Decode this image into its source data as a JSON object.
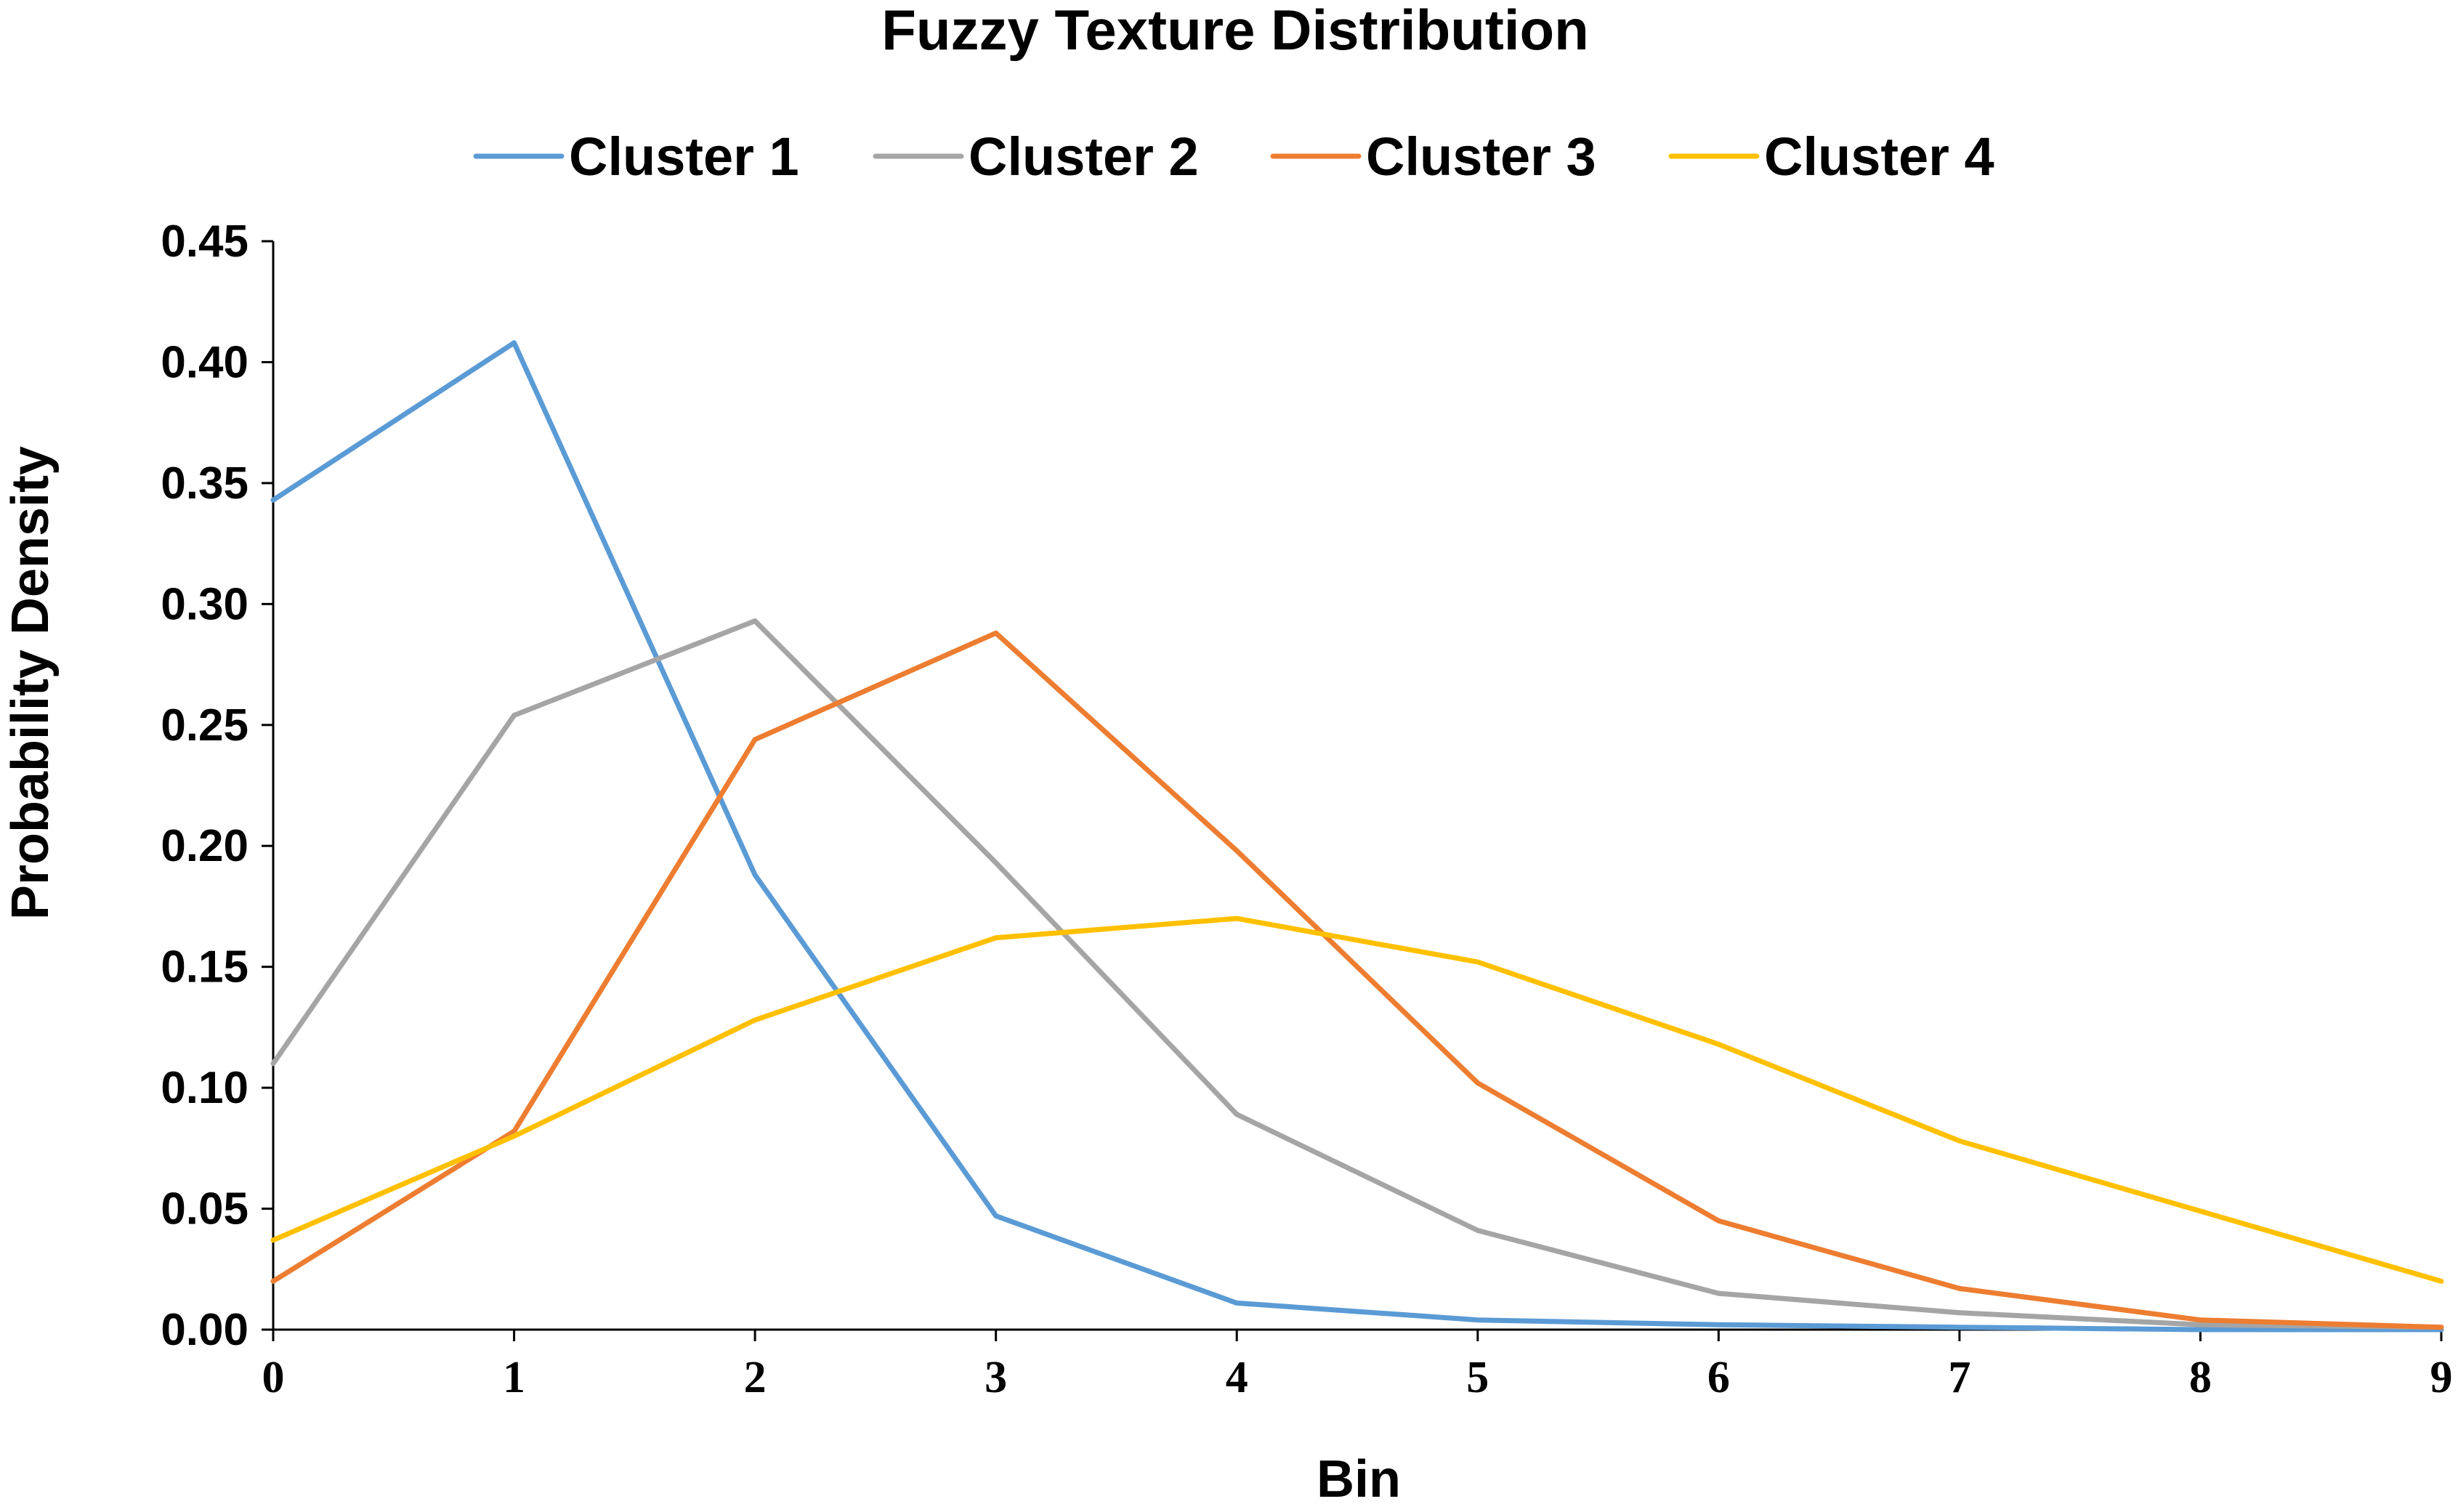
{
  "chart_data": {
    "type": "line",
    "title": "Fuzzy Texture Distribution",
    "xlabel": "Bin",
    "ylabel": "Probability Density",
    "x": [
      0,
      1,
      2,
      3,
      4,
      5,
      6,
      7,
      8,
      9
    ],
    "x_tick_labels": [
      "0",
      "1",
      "2",
      "3",
      "4",
      "5",
      "6",
      "7",
      "8",
      "9"
    ],
    "xlim": [
      0,
      9
    ],
    "ylim": [
      0,
      0.45
    ],
    "y_ticks": [
      0,
      0.05,
      0.1,
      0.15,
      0.2,
      0.25,
      0.3,
      0.35,
      0.4,
      0.45
    ],
    "y_tick_labels": [
      "0.00",
      "0.05",
      "0.10",
      "0.15",
      "0.20",
      "0.25",
      "0.30",
      "0.35",
      "0.40",
      "0.45"
    ],
    "grid": false,
    "legend_position": "top",
    "series": [
      {
        "name": "Cluster 1",
        "color": "#5b9bd5",
        "values": [
          0.343,
          0.408,
          0.188,
          0.047,
          0.011,
          0.004,
          0.002,
          0.001,
          0.0,
          0.0
        ]
      },
      {
        "name": "Cluster 2",
        "color": "#a5a5a5",
        "values": [
          0.11,
          0.254,
          0.293,
          0.193,
          0.089,
          0.041,
          0.015,
          0.007,
          0.002,
          0.001
        ]
      },
      {
        "name": "Cluster 3",
        "color": "#ed7d31",
        "values": [
          0.02,
          0.082,
          0.244,
          0.288,
          0.198,
          0.102,
          0.045,
          0.017,
          0.004,
          0.001
        ]
      },
      {
        "name": "Cluster 4",
        "color": "#ffc000",
        "values": [
          0.037,
          0.08,
          0.128,
          0.162,
          0.17,
          0.152,
          0.118,
          0.078,
          0.049,
          0.02
        ]
      }
    ]
  }
}
